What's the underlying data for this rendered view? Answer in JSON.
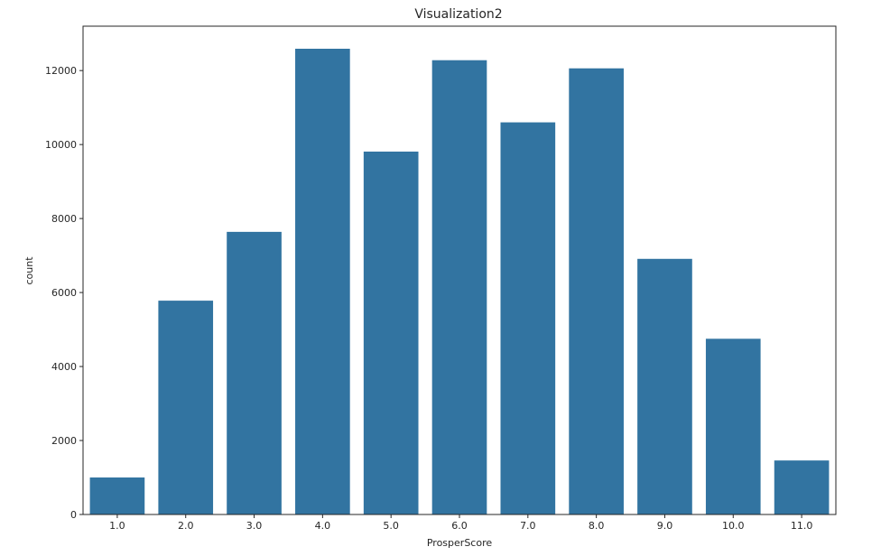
{
  "chart_data": {
    "type": "bar",
    "title": "Visualization2",
    "xlabel": "ProsperScore",
    "ylabel": "count",
    "categories": [
      "1.0",
      "2.0",
      "3.0",
      "4.0",
      "5.0",
      "6.0",
      "7.0",
      "8.0",
      "9.0",
      "10.0",
      "11.0"
    ],
    "values": [
      1000,
      5780,
      7640,
      12590,
      9810,
      12280,
      10600,
      12060,
      6910,
      4750,
      1460
    ],
    "ylim": [
      0,
      13200
    ],
    "yticks": [
      0,
      2000,
      4000,
      6000,
      8000,
      10000,
      12000
    ],
    "bar_color": "#3274a1",
    "grid": false,
    "legend": "none"
  }
}
